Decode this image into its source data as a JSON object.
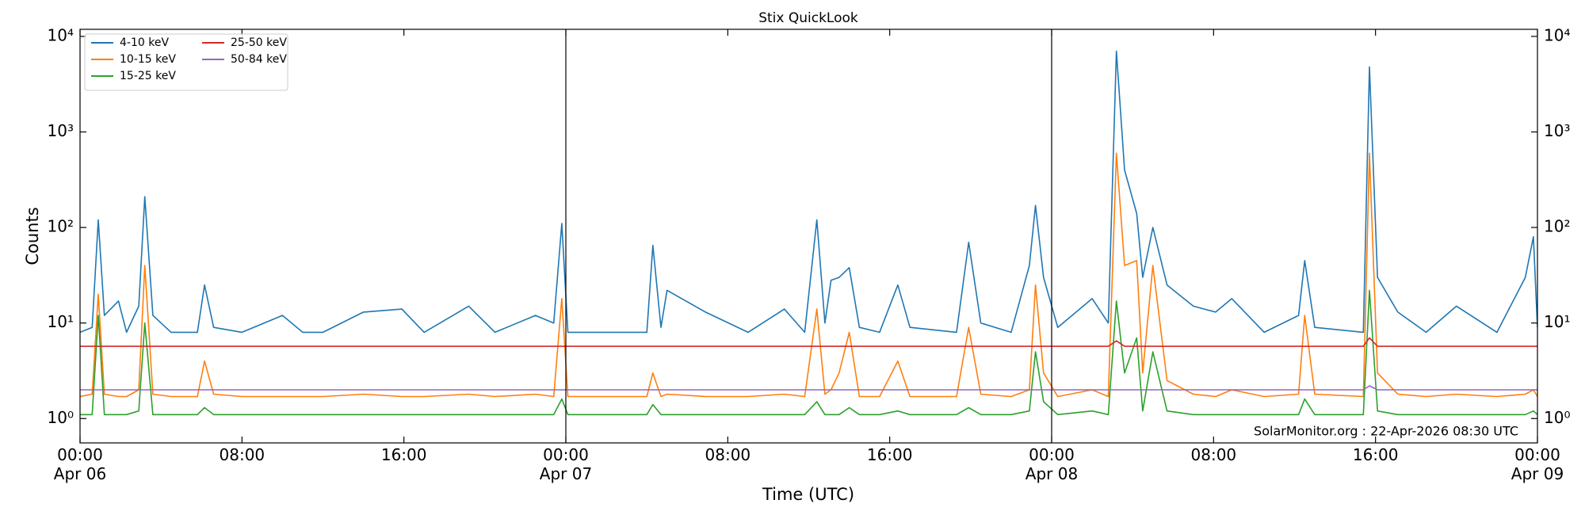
{
  "chart_data": {
    "type": "line",
    "title": "Stix QuickLook",
    "xlabel": "Time (UTC)",
    "ylabel": "Counts",
    "annotation": "SolarMonitor.org : 22-Apr-2026 08:30 UTC",
    "log_y": true,
    "legend": "upper left",
    "legend_columns": 2,
    "day_separators": [
      24,
      48
    ],
    "xlim": [
      0,
      72
    ],
    "xticks": [
      {
        "value": 0,
        "label": "00:00\nApr 06"
      },
      {
        "value": 8,
        "label": "08:00"
      },
      {
        "value": 16,
        "label": "16:00"
      },
      {
        "value": 24,
        "label": "00:00\nApr 07"
      },
      {
        "value": 32,
        "label": "08:00"
      },
      {
        "value": 40,
        "label": "16:00"
      },
      {
        "value": 48,
        "label": "00:00\nApr 08"
      },
      {
        "value": 56,
        "label": "08:00"
      },
      {
        "value": 64,
        "label": "16:00"
      },
      {
        "value": 72,
        "label": "00:00\nApr 09"
      }
    ],
    "ylim": [
      0.556,
      11860
    ],
    "yticks": [
      {
        "value": 1,
        "label": "10⁰"
      },
      {
        "value": 10,
        "label": "10¹"
      },
      {
        "value": 100,
        "label": "10²"
      },
      {
        "value": 1000,
        "label": "10³"
      },
      {
        "value": 10000,
        "label": "10⁴"
      }
    ],
    "x": [
      0,
      0.6,
      0.9,
      1.2,
      1.9,
      2.3,
      2.9,
      3.2,
      3.6,
      4.5,
      5.8,
      6.15,
      6.6,
      8,
      10,
      11,
      12,
      14,
      15.9,
      17,
      19.2,
      20.5,
      22.5,
      23.4,
      23.8,
      24.1,
      26,
      28.0,
      28.3,
      28.7,
      29,
      30.9,
      33,
      34.8,
      35.8,
      36.4,
      36.8,
      37.1,
      37.5,
      38,
      38.5,
      39.5,
      40.4,
      41,
      43.3,
      43.9,
      44.5,
      46,
      46.9,
      47.2,
      47.6,
      48.3,
      50,
      50.8,
      51.2,
      51.6,
      52.2,
      52.5,
      53,
      53.7,
      55,
      56.1,
      56.9,
      58.5,
      60.2,
      60.5,
      61,
      63.4,
      63.7,
      64.1,
      65.1,
      66.5,
      68,
      70,
      71.4,
      71.8,
      72
    ],
    "series": [
      {
        "name": "4-10 keV",
        "color": "#1f77b4",
        "values": [
          8,
          9,
          120,
          12,
          17,
          8,
          15,
          210,
          12,
          8,
          8,
          25,
          9,
          8,
          12,
          8,
          8,
          13,
          14,
          8,
          15,
          8,
          12,
          10,
          110,
          8,
          8,
          8,
          65,
          9,
          22,
          13,
          8,
          14,
          8,
          120,
          10,
          28,
          30,
          38,
          9,
          8,
          25,
          9,
          8,
          70,
          10,
          8,
          40,
          170,
          30,
          9,
          18,
          10,
          7000,
          400,
          140,
          30,
          100,
          25,
          15,
          13,
          18,
          8,
          12,
          45,
          9,
          8,
          4800,
          30,
          13,
          8,
          15,
          8,
          30,
          80,
          9
        ]
      },
      {
        "name": "10-15 keV",
        "color": "#ff7f0e",
        "values": [
          1.7,
          1.8,
          20,
          1.8,
          1.7,
          1.7,
          2,
          40,
          1.8,
          1.7,
          1.7,
          4,
          1.8,
          1.7,
          1.7,
          1.7,
          1.7,
          1.8,
          1.7,
          1.7,
          1.8,
          1.7,
          1.8,
          1.7,
          18,
          1.7,
          1.7,
          1.7,
          3,
          1.7,
          1.8,
          1.7,
          1.7,
          1.8,
          1.7,
          14,
          1.8,
          2,
          3,
          8,
          1.7,
          1.7,
          4,
          1.7,
          1.7,
          9,
          1.8,
          1.7,
          2,
          25,
          3,
          1.7,
          2,
          1.7,
          600,
          40,
          45,
          3,
          40,
          2.5,
          1.8,
          1.7,
          2,
          1.7,
          1.8,
          12,
          1.8,
          1.7,
          600,
          3,
          1.8,
          1.7,
          1.8,
          1.7,
          1.8,
          2,
          1.7
        ]
      },
      {
        "name": "15-25 keV",
        "color": "#2ca02c",
        "values": [
          1.1,
          1.1,
          12,
          1.1,
          1.1,
          1.1,
          1.2,
          10,
          1.1,
          1.1,
          1.1,
          1.3,
          1.1,
          1.1,
          1.1,
          1.1,
          1.1,
          1.1,
          1.1,
          1.1,
          1.1,
          1.1,
          1.1,
          1.1,
          1.6,
          1.1,
          1.1,
          1.1,
          1.4,
          1.1,
          1.1,
          1.1,
          1.1,
          1.1,
          1.1,
          1.5,
          1.1,
          1.1,
          1.1,
          1.3,
          1.1,
          1.1,
          1.2,
          1.1,
          1.1,
          1.3,
          1.1,
          1.1,
          1.2,
          5,
          1.5,
          1.1,
          1.2,
          1.1,
          17,
          3,
          7,
          1.2,
          5,
          1.2,
          1.1,
          1.1,
          1.1,
          1.1,
          1.1,
          1.6,
          1.1,
          1.1,
          22,
          1.2,
          1.1,
          1.1,
          1.1,
          1.1,
          1.1,
          1.2,
          1.1
        ]
      },
      {
        "name": "25-50 keV",
        "color": "#d62728",
        "values": [
          5.7,
          5.7,
          5.7,
          5.7,
          5.7,
          5.7,
          5.7,
          5.7,
          5.7,
          5.7,
          5.7,
          5.7,
          5.7,
          5.7,
          5.7,
          5.7,
          5.7,
          5.7,
          5.7,
          5.7,
          5.7,
          5.7,
          5.7,
          5.7,
          5.7,
          5.7,
          5.7,
          5.7,
          5.7,
          5.7,
          5.7,
          5.7,
          5.7,
          5.7,
          5.7,
          5.7,
          5.7,
          5.7,
          5.7,
          5.7,
          5.7,
          5.7,
          5.7,
          5.7,
          5.7,
          5.7,
          5.7,
          5.7,
          5.7,
          5.7,
          5.7,
          5.7,
          5.7,
          5.7,
          6.5,
          5.7,
          5.7,
          5.7,
          5.7,
          5.7,
          5.7,
          5.7,
          5.7,
          5.7,
          5.7,
          5.7,
          5.7,
          5.7,
          7,
          5.7,
          5.7,
          5.7,
          5.7,
          5.7,
          5.7,
          5.7,
          5.7
        ]
      },
      {
        "name": "50-84 keV",
        "color": "#9467bd",
        "values": [
          2,
          2,
          2,
          2,
          2,
          2,
          2,
          2,
          2,
          2,
          2,
          2,
          2,
          2,
          2,
          2,
          2,
          2,
          2,
          2,
          2,
          2,
          2,
          2,
          2,
          2,
          2,
          2,
          2,
          2,
          2,
          2,
          2,
          2,
          2,
          2,
          2,
          2,
          2,
          2,
          2,
          2,
          2,
          2,
          2,
          2,
          2,
          2,
          2,
          2,
          2,
          2,
          2,
          2,
          2,
          2,
          2,
          2,
          2,
          2,
          2,
          2,
          2,
          2,
          2,
          2,
          2,
          2,
          2.2,
          2,
          2,
          2,
          2,
          2,
          2,
          2,
          2
        ]
      }
    ]
  }
}
